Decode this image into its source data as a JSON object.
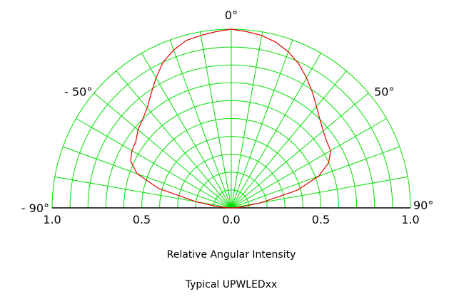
{
  "chart_data": {
    "type": "polar-line",
    "title": "Typical UPWLEDxx",
    "xlabel": "Relative Angular Intensity",
    "angle_range_deg": [
      -90,
      90
    ],
    "radial_range": [
      0,
      1
    ],
    "grid": true,
    "angle_labels": [
      {
        "angle": -90,
        "text": "- 90°"
      },
      {
        "angle": -50,
        "text": "- 50°"
      },
      {
        "angle": 0,
        "text": "0°"
      },
      {
        "angle": 50,
        "text": "50°"
      },
      {
        "angle": 90,
        "text": "90°"
      }
    ],
    "radial_tick_labels": [
      "1.0",
      "0.5",
      "0.0",
      "0.5",
      "1.0"
    ],
    "colors": {
      "grid": "#00e000",
      "series": "#e00000",
      "axis": "#000000"
    },
    "series": [
      {
        "angles_deg": [
          -90,
          -85,
          -80,
          -75,
          -70,
          -65,
          -60,
          -55,
          -50,
          -45,
          -40,
          -35,
          -30,
          -25,
          -20,
          -15,
          -10,
          -5,
          0,
          5,
          10,
          15,
          20,
          25,
          30,
          35,
          40,
          45,
          50,
          55,
          60,
          65,
          70,
          75,
          80,
          85,
          90
        ],
        "values": [
          0.02,
          0.08,
          0.2,
          0.42,
          0.56,
          0.62,
          0.64,
          0.65,
          0.68,
          0.7,
          0.73,
          0.78,
          0.84,
          0.9,
          0.94,
          0.97,
          0.98,
          0.99,
          1.0,
          0.99,
          0.98,
          0.96,
          0.93,
          0.89,
          0.84,
          0.79,
          0.74,
          0.7,
          0.67,
          0.65,
          0.64,
          0.6,
          0.52,
          0.38,
          0.17,
          0.06,
          0.02
        ]
      }
    ]
  }
}
